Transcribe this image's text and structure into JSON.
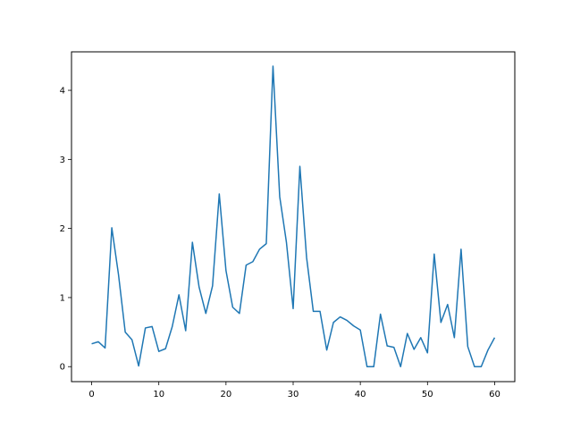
{
  "chart_data": {
    "type": "line",
    "title": "",
    "xlabel": "",
    "ylabel": "",
    "xlim": [
      -3,
      63
    ],
    "ylim": [
      -0.217,
      4.557
    ],
    "xticks": [
      0,
      10,
      20,
      30,
      40,
      50,
      60
    ],
    "yticks": [
      0,
      1,
      2,
      3,
      4
    ],
    "grid": false,
    "legend": "none",
    "series": [
      {
        "color": "#1f77b4",
        "x": [
          0,
          1,
          2,
          3,
          4,
          5,
          6,
          7,
          8,
          9,
          10,
          11,
          12,
          13,
          14,
          15,
          16,
          17,
          18,
          19,
          20,
          21,
          22,
          23,
          24,
          25,
          26,
          27,
          28,
          29,
          30,
          31,
          32,
          33,
          34,
          35,
          36,
          37,
          38,
          39,
          40,
          41,
          42,
          43,
          44,
          45,
          46,
          47,
          48,
          49,
          50,
          51,
          52,
          53,
          54,
          55,
          56,
          57,
          58,
          59,
          60
        ],
        "values": [
          0.33,
          0.36,
          0.27,
          2.01,
          1.33,
          0.5,
          0.39,
          0.01,
          0.56,
          0.58,
          0.22,
          0.26,
          0.58,
          1.04,
          0.52,
          1.8,
          1.15,
          0.77,
          1.17,
          2.5,
          1.39,
          0.86,
          0.77,
          1.47,
          1.52,
          1.7,
          1.78,
          4.35,
          2.46,
          1.8,
          0.84,
          2.9,
          1.58,
          0.8,
          0.8,
          0.24,
          0.64,
          0.72,
          0.67,
          0.59,
          0.53,
          0.0,
          0.0,
          0.76,
          0.3,
          0.28,
          0.0,
          0.48,
          0.25,
          0.42,
          0.2,
          1.63,
          0.64,
          0.9,
          0.42,
          1.7,
          0.29,
          0.0,
          0.0,
          0.24,
          0.42
        ]
      }
    ]
  }
}
